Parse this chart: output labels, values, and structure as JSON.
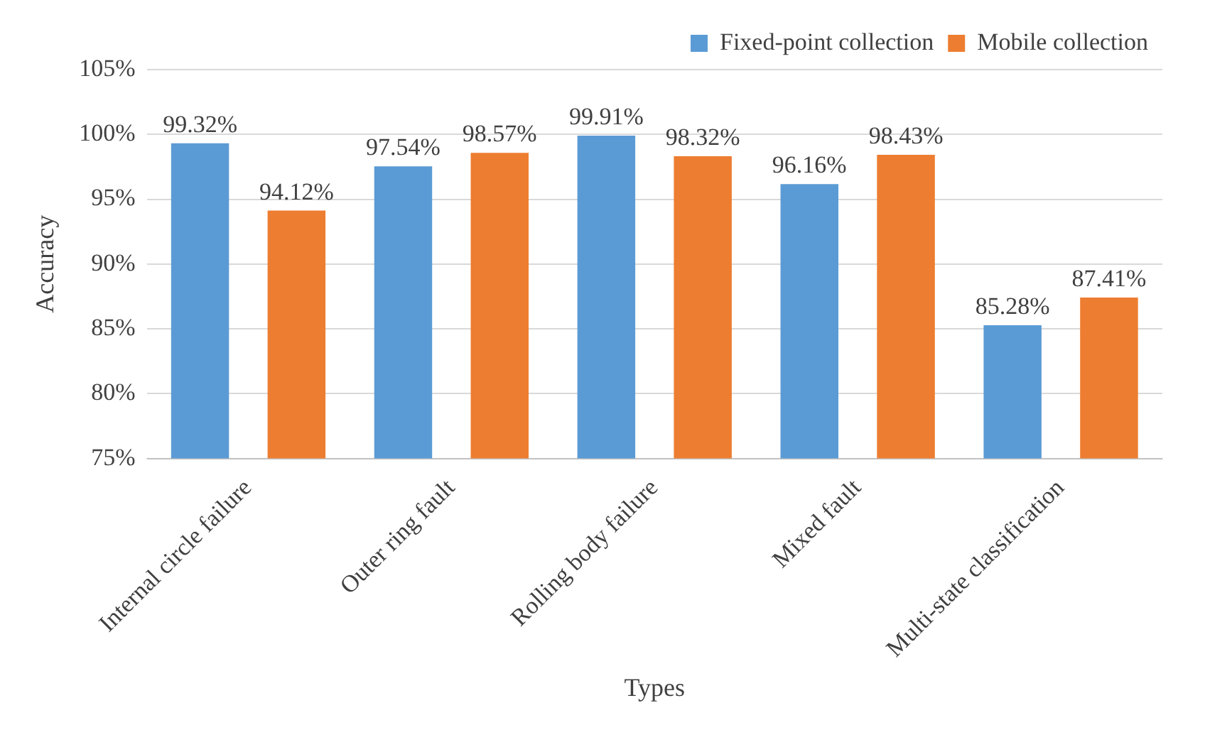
{
  "chart_data": {
    "type": "bar",
    "xlabel": "Types",
    "ylabel": "Accuracy",
    "categories": [
      "Internal circle failure",
      "Outer ring fault",
      "Rolling body failure",
      "Mixed fault",
      "Multi-state classification"
    ],
    "series": [
      {
        "name": "Fixed-point collection",
        "color": "#5b9bd5",
        "values": [
          99.32,
          97.54,
          99.91,
          96.16,
          85.28
        ],
        "value_labels": [
          "99.32%",
          "97.54%",
          "99.91%",
          "96.16%",
          "85.28%"
        ]
      },
      {
        "name": "Mobile collection",
        "color": "#ed7d31",
        "values": [
          94.12,
          98.57,
          98.32,
          98.43,
          87.41
        ],
        "value_labels": [
          "94.12%",
          "98.57%",
          "98.32%",
          "98.43%",
          "87.41%"
        ]
      }
    ],
    "ylim": [
      75,
      105
    ],
    "yticks": [
      {
        "value": 75,
        "label": "75%"
      },
      {
        "value": 80,
        "label": "80%"
      },
      {
        "value": 85,
        "label": "85%"
      },
      {
        "value": 90,
        "label": "90%"
      },
      {
        "value": 95,
        "label": "95%"
      },
      {
        "value": 100,
        "label": "100%"
      },
      {
        "value": 105,
        "label": "105%"
      }
    ],
    "grid": "y",
    "legend": "top right"
  }
}
